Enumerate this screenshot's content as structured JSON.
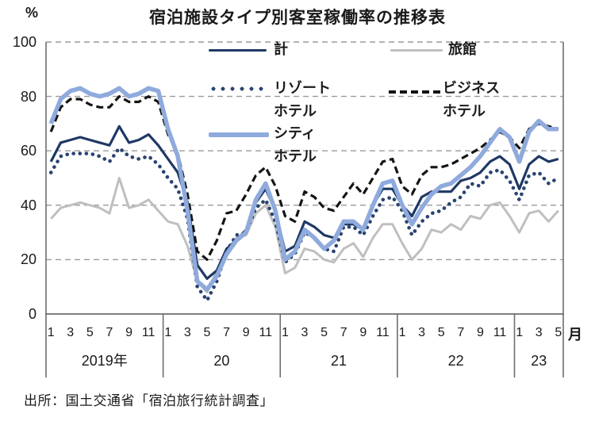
{
  "title": "宿泊施設タイプ別客室稼働率の推移表",
  "source": "出所：国土交通省「宿泊旅行統計調査」",
  "axis": {
    "y_unit": "%",
    "x_unit": "月",
    "y_ticks": [
      100,
      80,
      60,
      40,
      20,
      0
    ],
    "sections": [
      {
        "year": "2019年",
        "month_labels": [
          "1",
          "3",
          "5",
          "7",
          "9",
          "11"
        ],
        "month_count": 12
      },
      {
        "year": "20",
        "month_labels": [
          "1",
          "3",
          "5",
          "7",
          "9",
          "11"
        ],
        "month_count": 12
      },
      {
        "year": "21",
        "month_labels": [
          "1",
          "3",
          "5",
          "7",
          "9",
          "11"
        ],
        "month_count": 12
      },
      {
        "year": "22",
        "month_labels": [
          "1",
          "3",
          "5",
          "7",
          "9",
          "11"
        ],
        "month_count": 12
      },
      {
        "year": "23",
        "month_labels": [
          "1",
          "3",
          "5"
        ],
        "month_count": 5
      }
    ]
  },
  "legend": [
    {
      "label": "計",
      "label2": "",
      "series": "total"
    },
    {
      "label": "旅館",
      "label2": "",
      "series": "ryokan"
    },
    {
      "label": "リゾート",
      "label2": "ホテル",
      "series": "resort"
    },
    {
      "label": "ビジネス",
      "label2": "ホテル",
      "series": "business"
    },
    {
      "label": "シティ",
      "label2": "ホテル",
      "series": "city"
    }
  ],
  "colors": {
    "gridline": "#9a9a9a",
    "frame": "#6e6e6e",
    "text": "#1a1a1a"
  },
  "chart_data": {
    "type": "line",
    "title": "宿泊施設タイプ別客室稼働率の推移表",
    "ylabel": "%",
    "xlabel": "月",
    "ylim": [
      0,
      100
    ],
    "gridlines": [
      20,
      40,
      60,
      80,
      100
    ],
    "grid": true,
    "legend_position": "top-inside",
    "x_axis": {
      "start": "2019-01",
      "end": "2023-05",
      "months_total": 53,
      "year_sections": [
        "2019年",
        "20",
        "21",
        "22",
        "23"
      ],
      "tick_months": [
        1,
        3,
        5,
        7,
        9,
        11
      ]
    },
    "series": [
      {
        "name": "旅館",
        "key": "ryokan",
        "color": "#bfbfbf",
        "style": "solid",
        "width": 3,
        "values": [
          35,
          39,
          40,
          41,
          40,
          39,
          37,
          50,
          39,
          40,
          42,
          38,
          34,
          33,
          25,
          12,
          8,
          16,
          23,
          28,
          29,
          37,
          40,
          32,
          15,
          17,
          24,
          23,
          20,
          19,
          24,
          26,
          21,
          28,
          33,
          33,
          26,
          20,
          24,
          31,
          30,
          33,
          31,
          36,
          35,
          40,
          41,
          36,
          30,
          37,
          38,
          34,
          38
        ]
      },
      {
        "name": "リゾートホテル",
        "key": "resort",
        "color": "#2a4470",
        "style": "dotted",
        "width": 4.6,
        "values": [
          52,
          58,
          59,
          59,
          59,
          58,
          56,
          61,
          58,
          57,
          58,
          55,
          50,
          46,
          35,
          10,
          5,
          12,
          23,
          29,
          30,
          39,
          42,
          34,
          19,
          22,
          30,
          28,
          24,
          23,
          32,
          32,
          29,
          36,
          42,
          43,
          38,
          29,
          34,
          37,
          38,
          41,
          43,
          48,
          47,
          52,
          53,
          49,
          42,
          51,
          52,
          48,
          50
        ]
      },
      {
        "name": "計",
        "key": "total",
        "color": "#1f3864",
        "style": "solid",
        "width": 3.2,
        "values": [
          56,
          63,
          64,
          65,
          64,
          63,
          62,
          69,
          63,
          64,
          66,
          62,
          57,
          52,
          41,
          18,
          13,
          16,
          24,
          27,
          31,
          41,
          46,
          38,
          23,
          25,
          34,
          32,
          29,
          28,
          33,
          33,
          31,
          40,
          46,
          46,
          40,
          36,
          43,
          45,
          45,
          45,
          49,
          50,
          52,
          56,
          58,
          55,
          46,
          55,
          58,
          56,
          57
        ]
      },
      {
        "name": "ビジネスホテル",
        "key": "business",
        "color": "#141414",
        "style": "dashed",
        "width": 3.2,
        "values": [
          67,
          76,
          79,
          79,
          77,
          76,
          76,
          80,
          78,
          78,
          80,
          78,
          66,
          59,
          44,
          23,
          20,
          27,
          37,
          38,
          44,
          51,
          54,
          47,
          36,
          34,
          45,
          43,
          39,
          38,
          43,
          48,
          44,
          50,
          56,
          57,
          47,
          44,
          51,
          54,
          54,
          55,
          57,
          59,
          61,
          64,
          67,
          65,
          61,
          68,
          70,
          69,
          68
        ]
      },
      {
        "name": "シティホテル",
        "key": "city",
        "color": "#8faadc",
        "style": "solid",
        "width": 5.5,
        "values": [
          70,
          79,
          82,
          83,
          81,
          80,
          81,
          83,
          80,
          81,
          83,
          82,
          68,
          58,
          38,
          12,
          9,
          14,
          22,
          27,
          30,
          42,
          48,
          38,
          20,
          23,
          31,
          28,
          24,
          27,
          34,
          34,
          31,
          40,
          48,
          49,
          40,
          33,
          39,
          44,
          47,
          48,
          51,
          54,
          58,
          63,
          68,
          65,
          56,
          67,
          71,
          68,
          68
        ]
      }
    ]
  }
}
